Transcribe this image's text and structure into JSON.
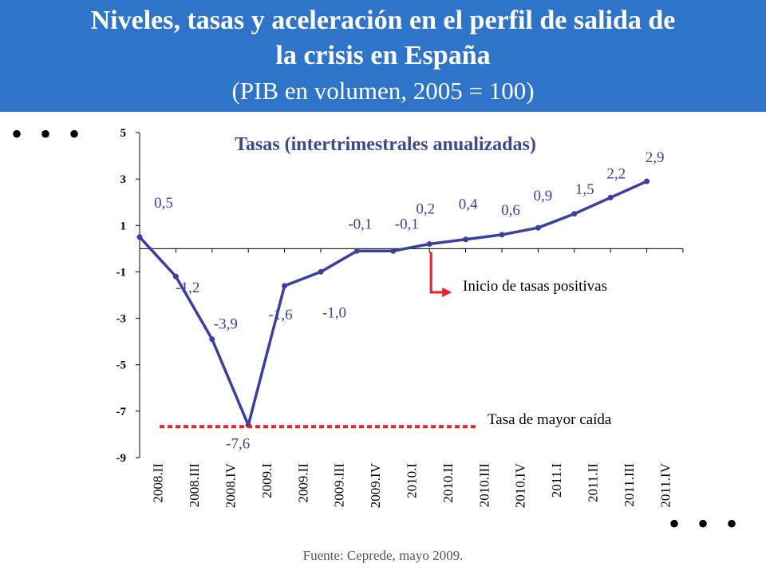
{
  "header": {
    "title_line1": "Niveles, tasas y aceleración en el perfil de salida de",
    "title_line2": "la crisis en España",
    "subtitle": "(PIB en volumen, 2005 = 100)",
    "background_color": "#2e75c9"
  },
  "continuation_marks": {
    "top": "• • •",
    "bottom": "• • •"
  },
  "chart_data": {
    "type": "line",
    "title": "Tasas (intertrimestrales anualizadas)",
    "categories": [
      "2008.II",
      "2008.III",
      "2008.IV",
      "2009.I",
      "2009.II",
      "2009.III",
      "2009.IV",
      "2010.I",
      "2010.II",
      "2010.III",
      "2010.IV",
      "2011.I",
      "2011.II",
      "2011.III",
      "2011.IV"
    ],
    "series": [
      {
        "values": [
          0.5,
          -1.2,
          -3.9,
          -7.6,
          -1.6,
          -1.0,
          -0.1,
          -0.1,
          0.2,
          0.4,
          0.6,
          0.9,
          1.5,
          2.2,
          2.9
        ],
        "color": "#3a3fa0"
      }
    ],
    "data_labels": [
      "0,5",
      "-1,2",
      "-3,9",
      "-7,6",
      "-1,6",
      "-1,0",
      "-0,1",
      "-0,1",
      "0,2",
      "0,4",
      "0,6",
      "0,9",
      "1,5",
      "2,2",
      "2,9"
    ],
    "y_ticks": [
      "5",
      "3",
      "1",
      "-1",
      "-3",
      "-5",
      "-7",
      "-9"
    ],
    "y_tick_values": [
      5,
      3,
      1,
      -1,
      -3,
      -5,
      -7,
      -9
    ],
    "ylim": [
      -9,
      5
    ],
    "grid": false,
    "label_color": "#3a3fa0",
    "title_color": "#3a4a8c",
    "annotations": [
      {
        "text": "Inicio de tasas positivas",
        "at_category": "2010.II",
        "color": "#e8222a"
      },
      {
        "text": "Tasa de mayor caída",
        "at_value": -7.6,
        "color": "#e8222a"
      }
    ]
  },
  "source": "Fuente: Ceprede, mayo 2009."
}
